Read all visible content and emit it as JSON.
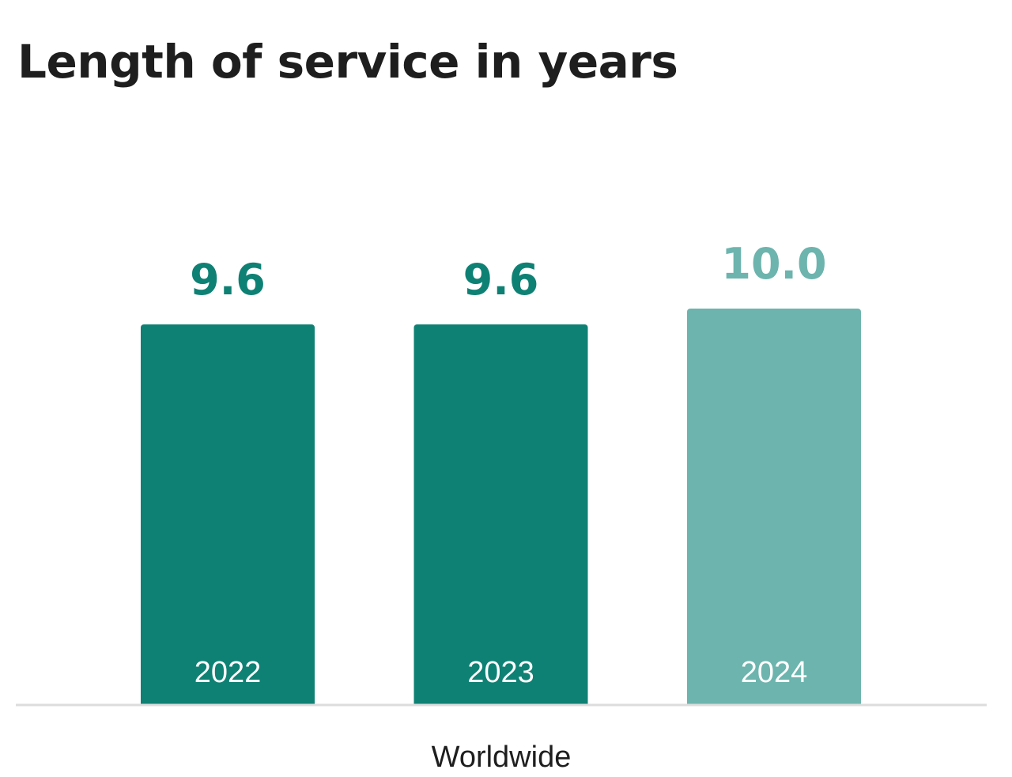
{
  "chart_data": {
    "type": "bar",
    "title": "Length of service in years",
    "categories": [
      "Worldwide"
    ],
    "series": [
      {
        "name": "2022",
        "values": [
          9.6
        ],
        "label": "9.6",
        "color": "#0e8174"
      },
      {
        "name": "2023",
        "values": [
          9.6
        ],
        "label": "9.6",
        "color": "#0e8174"
      },
      {
        "name": "2024",
        "values": [
          10.0
        ],
        "label": "10.0",
        "color": "#6db4ae"
      }
    ],
    "ylim": [
      0,
      12.5
    ],
    "grid": false,
    "axis_color": "#dddddd",
    "series_label_color": "#ffffff"
  }
}
